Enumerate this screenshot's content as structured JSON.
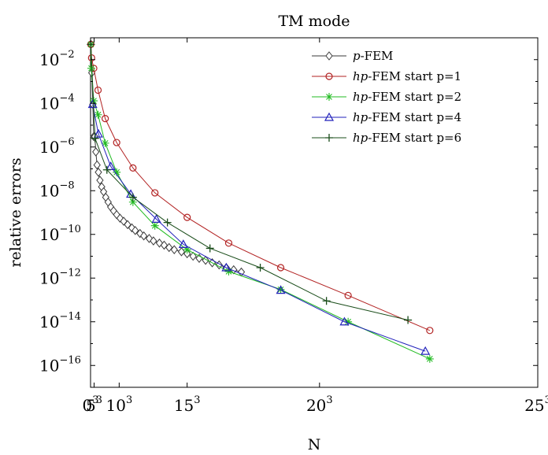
{
  "chart_data": {
    "type": "line",
    "title": "TM mode",
    "xlabel": "N",
    "ylabel": "relative errors",
    "x_scale": "cube",
    "y_scale": "log",
    "xlim": [
      0,
      25
    ],
    "ylim_exp": [
      -17,
      -1
    ],
    "x_tick_values": [
      0,
      5,
      10,
      15,
      20,
      25
    ],
    "x_tick_labels": [
      "0",
      "5",
      "10",
      "15",
      "20",
      "25"
    ],
    "x_tick_sup": "3",
    "y_tick_exponents": [
      -2,
      -4,
      -6,
      -8,
      -10,
      -12,
      -14,
      -16
    ],
    "y_tick_base": "10",
    "legend_position": "top-right",
    "grid": false,
    "series": [
      {
        "name": "p-FEM",
        "name_italic": "p",
        "name_rest": "-FEM",
        "color": "#3a3a3a",
        "marker": "diamond",
        "x": [
          2.2,
          3.5,
          4.3,
          4.8,
          5.3,
          5.7,
          6.1,
          6.5,
          6.9,
          7.3,
          7.7,
          8.1,
          8.5,
          8.9,
          9.3,
          9.7,
          10.1,
          10.5,
          10.9,
          11.3,
          11.6,
          12.0,
          12.3,
          12.7,
          13.0,
          13.4,
          13.7,
          14.0,
          14.3,
          14.7,
          15.0,
          15.3,
          15.6,
          15.9,
          16.2,
          16.5,
          16.8,
          17.1,
          17.4
        ],
        "y": [
          0.05,
          0.0025,
          9e-05,
          3e-06,
          3e-06,
          6e-07,
          1.5e-07,
          7e-08,
          3e-08,
          1.5e-08,
          9e-09,
          5e-09,
          3e-09,
          1.8e-09,
          1.2e-09,
          8e-10,
          5.5e-10,
          4e-10,
          2.8e-10,
          2e-10,
          1.5e-10,
          1.1e-10,
          8.5e-11,
          6.5e-11,
          5e-11,
          4e-11,
          3.2e-11,
          2.5e-11,
          2e-11,
          1.6e-11,
          1.3e-11,
          1e-11,
          8e-12,
          6.5e-12,
          5e-12,
          4e-12,
          3e-12,
          2.4e-12,
          1.9e-12
        ]
      },
      {
        "name": "hp-FEM start p=1",
        "name_italic": "hp",
        "name_rest": "-FEM start p=1",
        "color": "#b22222",
        "marker": "circle",
        "x": [
          2.2,
          3.3,
          4.8,
          6.4,
          8.0,
          9.7,
          11.4,
          13.1,
          15.0,
          16.9,
          18.8,
          20.8,
          22.8
        ],
        "y": [
          0.05,
          0.012,
          0.004,
          0.0004,
          2e-05,
          1.6e-06,
          1.1e-07,
          8e-09,
          6e-10,
          4e-11,
          3e-12,
          1.6e-13,
          4e-15
        ]
      },
      {
        "name": "hp-FEM start p=2",
        "name_italic": "hp",
        "name_rest": "-FEM start p=2",
        "color": "#22bb22",
        "marker": "star",
        "x": [
          2.2,
          3.0,
          4.8,
          6.4,
          8.0,
          9.7,
          11.4,
          13.1,
          15.0,
          16.9,
          18.8,
          20.8,
          22.8
        ],
        "y": [
          0.05,
          0.004,
          0.00013,
          3e-05,
          1.5e-06,
          7e-08,
          3e-09,
          2.5e-10,
          2e-11,
          2e-12,
          3e-13,
          1e-14,
          2e-16
        ]
      },
      {
        "name": "hp-FEM start p=4",
        "name_italic": "hp",
        "name_rest": "-FEM start p=4",
        "color": "#2222bb",
        "marker": "triangle",
        "x": [
          4.2,
          6.5,
          8.9,
          11.2,
          13.2,
          14.8,
          16.8,
          18.8,
          20.7,
          22.7
        ],
        "y": [
          9e-05,
          4e-06,
          1.3e-07,
          7e-09,
          5e-10,
          3.5e-11,
          3e-12,
          2.8e-13,
          1e-14,
          4.5e-16
        ]
      },
      {
        "name": "hp-FEM start p=6",
        "name_italic": "hp",
        "name_rest": "-FEM start p=6",
        "color": "#1a4d1a",
        "marker": "plus",
        "x": [
          2.2,
          5.4,
          8.3,
          11.4,
          13.9,
          16.1,
          18.1,
          20.2,
          22.3
        ],
        "y": [
          0.05,
          2.5e-06,
          9e-08,
          5e-09,
          3.5e-10,
          2.3e-11,
          3e-12,
          9e-14,
          1.2e-14
        ]
      }
    ]
  }
}
